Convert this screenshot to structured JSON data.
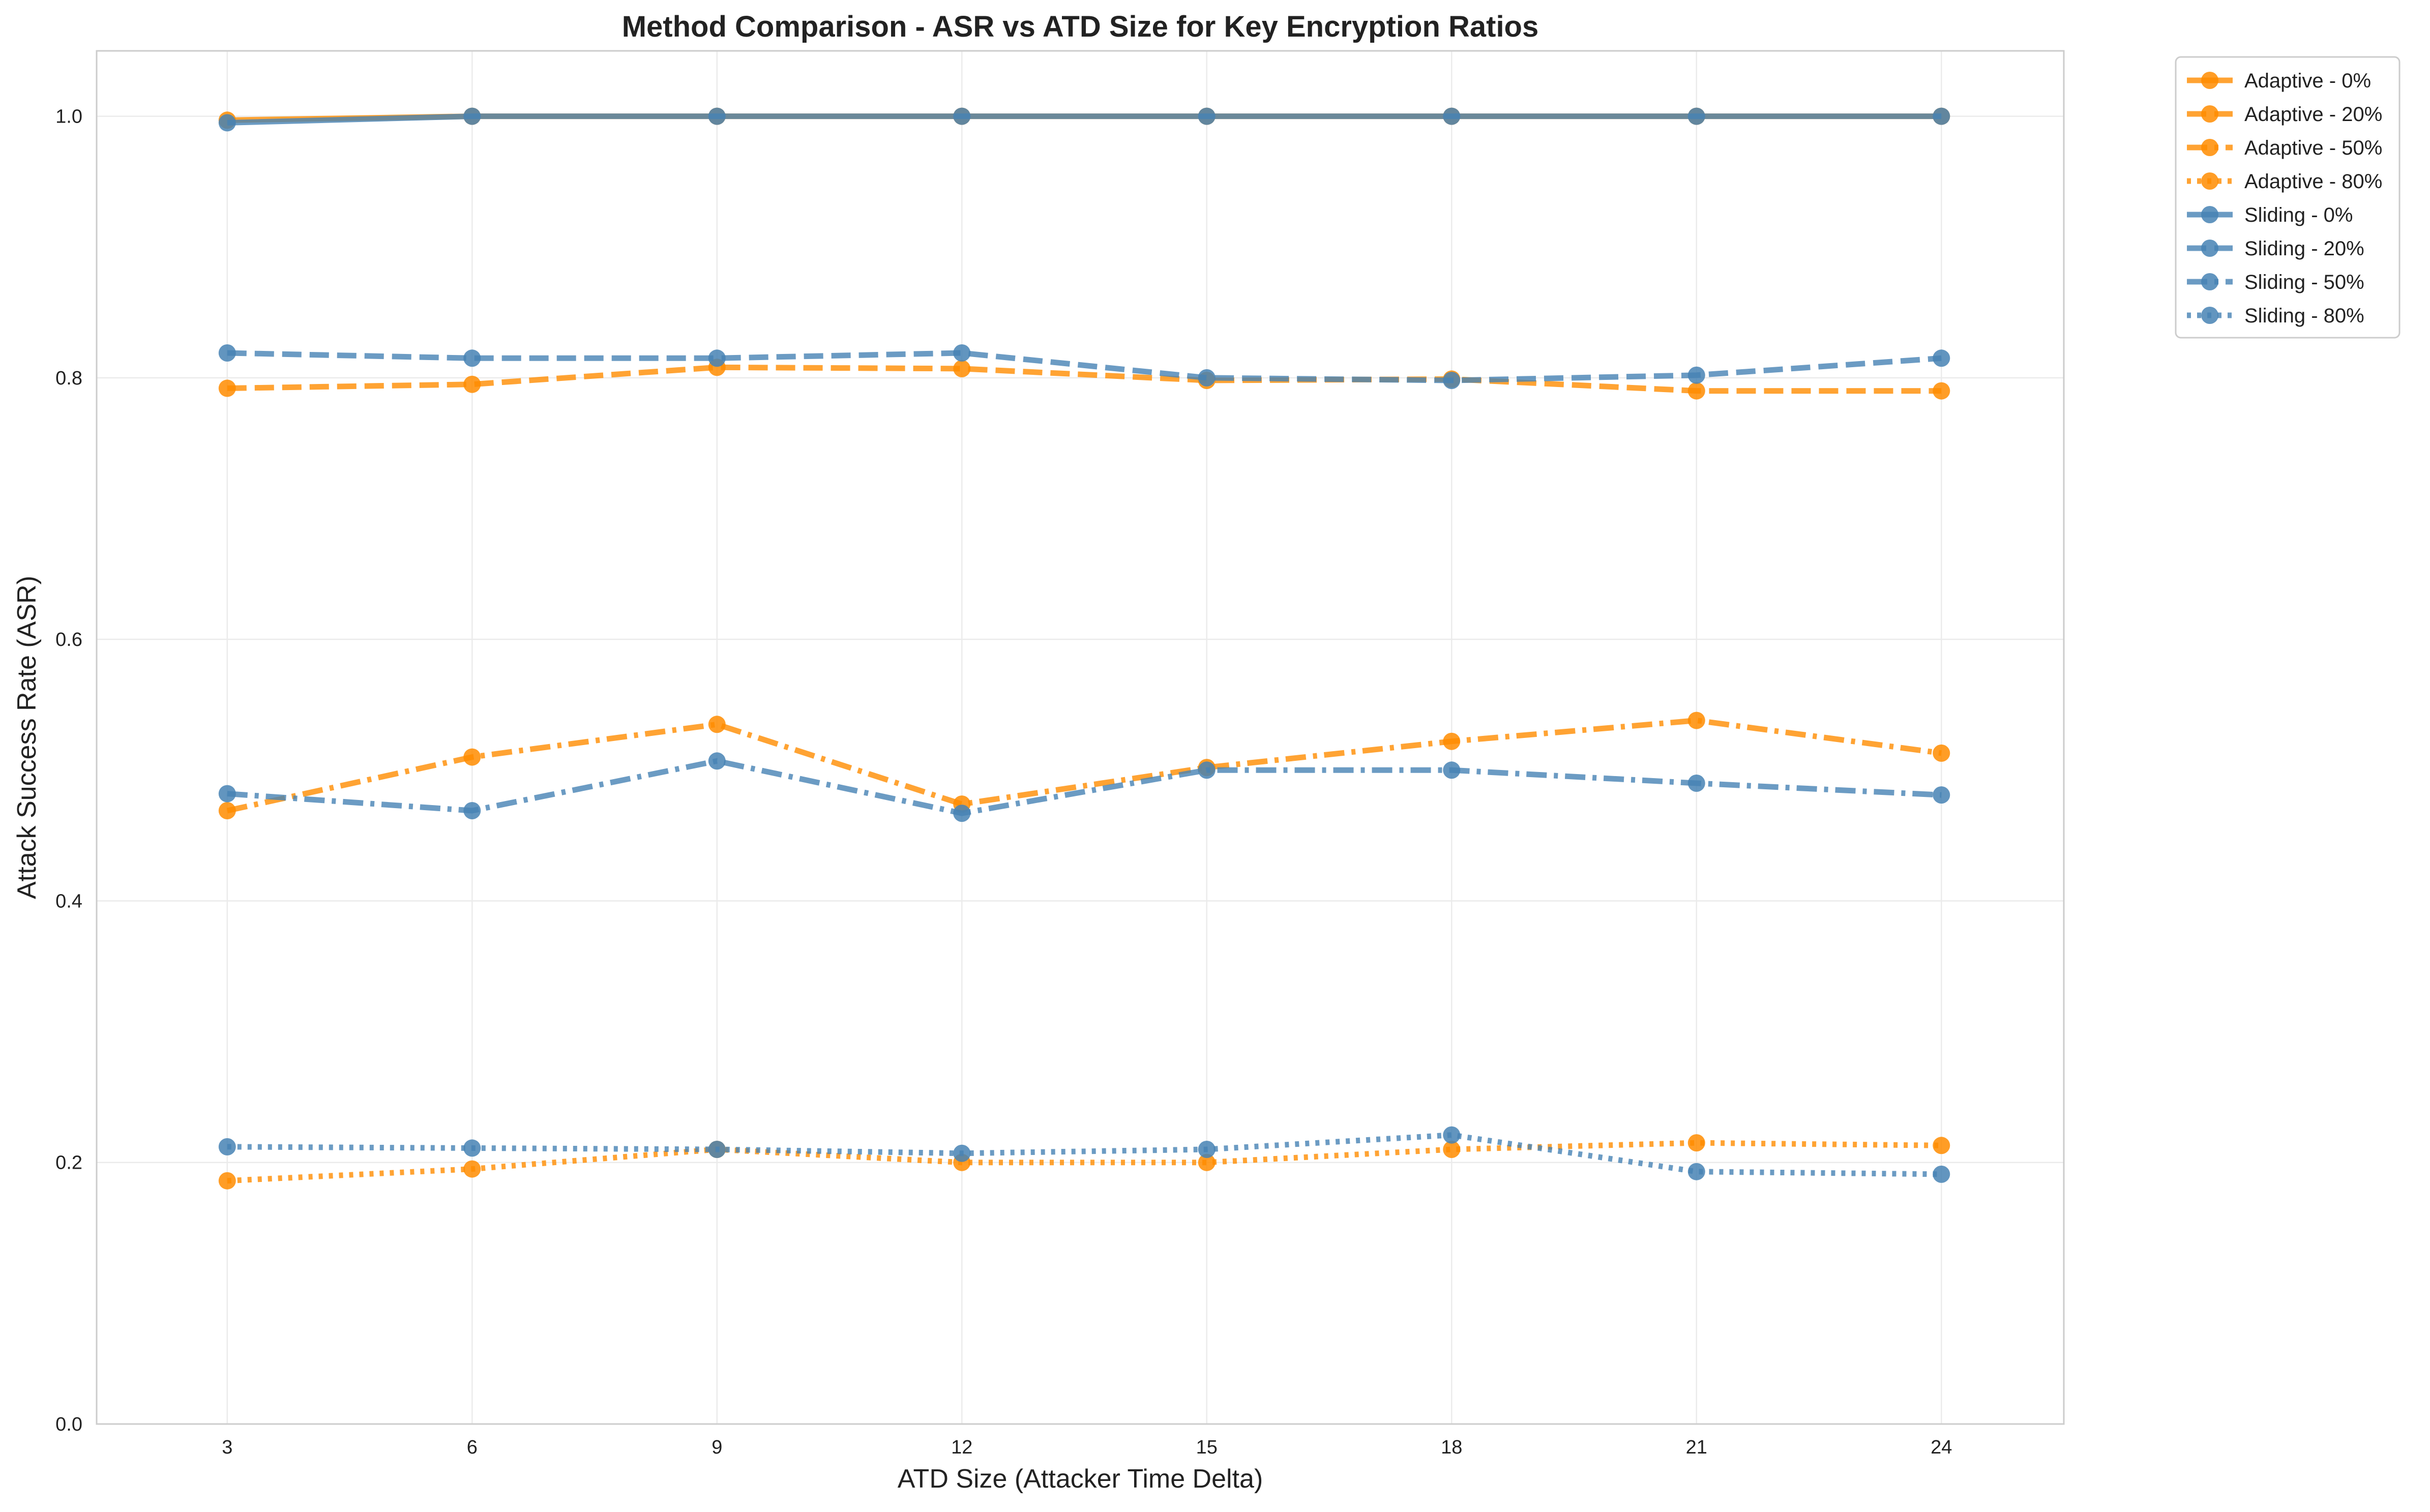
{
  "chart_data": {
    "type": "line",
    "title": "Method Comparison - ASR vs ATD Size for Key Encryption Ratios",
    "xlabel": "ATD Size (Attacker Time Delta)",
    "ylabel": "Attack Success Rate (ASR)",
    "x": [
      3,
      6,
      9,
      12,
      15,
      18,
      21,
      24
    ],
    "x_ticks": [
      "3",
      "6",
      "9",
      "12",
      "15",
      "18",
      "21",
      "24"
    ],
    "y_ticks": [
      "0.0",
      "0.2",
      "0.4",
      "0.6",
      "0.8",
      "1.0"
    ],
    "xlim": [
      1.4,
      25.5
    ],
    "ylim": [
      0.0,
      1.05
    ],
    "grid": true,
    "legend_position": "outside top-right",
    "colors": {
      "Adaptive": "#ff8c00",
      "Sliding": "#4682b4"
    },
    "series": [
      {
        "name": "Adaptive - 0%",
        "method": "Adaptive",
        "style": "solid",
        "values": [
          0.997,
          1.0,
          1.0,
          1.0,
          1.0,
          1.0,
          1.0,
          1.0
        ]
      },
      {
        "name": "Adaptive - 20%",
        "method": "Adaptive",
        "style": "dashed",
        "values": [
          0.792,
          0.795,
          0.808,
          0.807,
          0.798,
          0.799,
          0.79,
          0.79
        ]
      },
      {
        "name": "Adaptive - 50%",
        "method": "Adaptive",
        "style": "dashdot",
        "values": [
          0.469,
          0.51,
          0.535,
          0.474,
          0.502,
          0.522,
          0.538,
          0.513
        ]
      },
      {
        "name": "Adaptive - 80%",
        "method": "Adaptive",
        "style": "dotted",
        "values": [
          0.186,
          0.195,
          0.21,
          0.2,
          0.2,
          0.21,
          0.215,
          0.213
        ]
      },
      {
        "name": "Sliding - 0%",
        "method": "Sliding",
        "style": "solid",
        "values": [
          0.995,
          1.0,
          1.0,
          1.0,
          1.0,
          1.0,
          1.0,
          1.0
        ]
      },
      {
        "name": "Sliding - 20%",
        "method": "Sliding",
        "style": "dashed",
        "values": [
          0.819,
          0.815,
          0.815,
          0.819,
          0.8,
          0.798,
          0.802,
          0.815
        ]
      },
      {
        "name": "Sliding - 50%",
        "method": "Sliding",
        "style": "dashdot",
        "values": [
          0.482,
          0.469,
          0.507,
          0.467,
          0.5,
          0.5,
          0.49,
          0.481
        ]
      },
      {
        "name": "Sliding - 80%",
        "method": "Sliding",
        "style": "dotted",
        "values": [
          0.212,
          0.211,
          0.21,
          0.207,
          0.21,
          0.221,
          0.193,
          0.191
        ]
      }
    ]
  }
}
